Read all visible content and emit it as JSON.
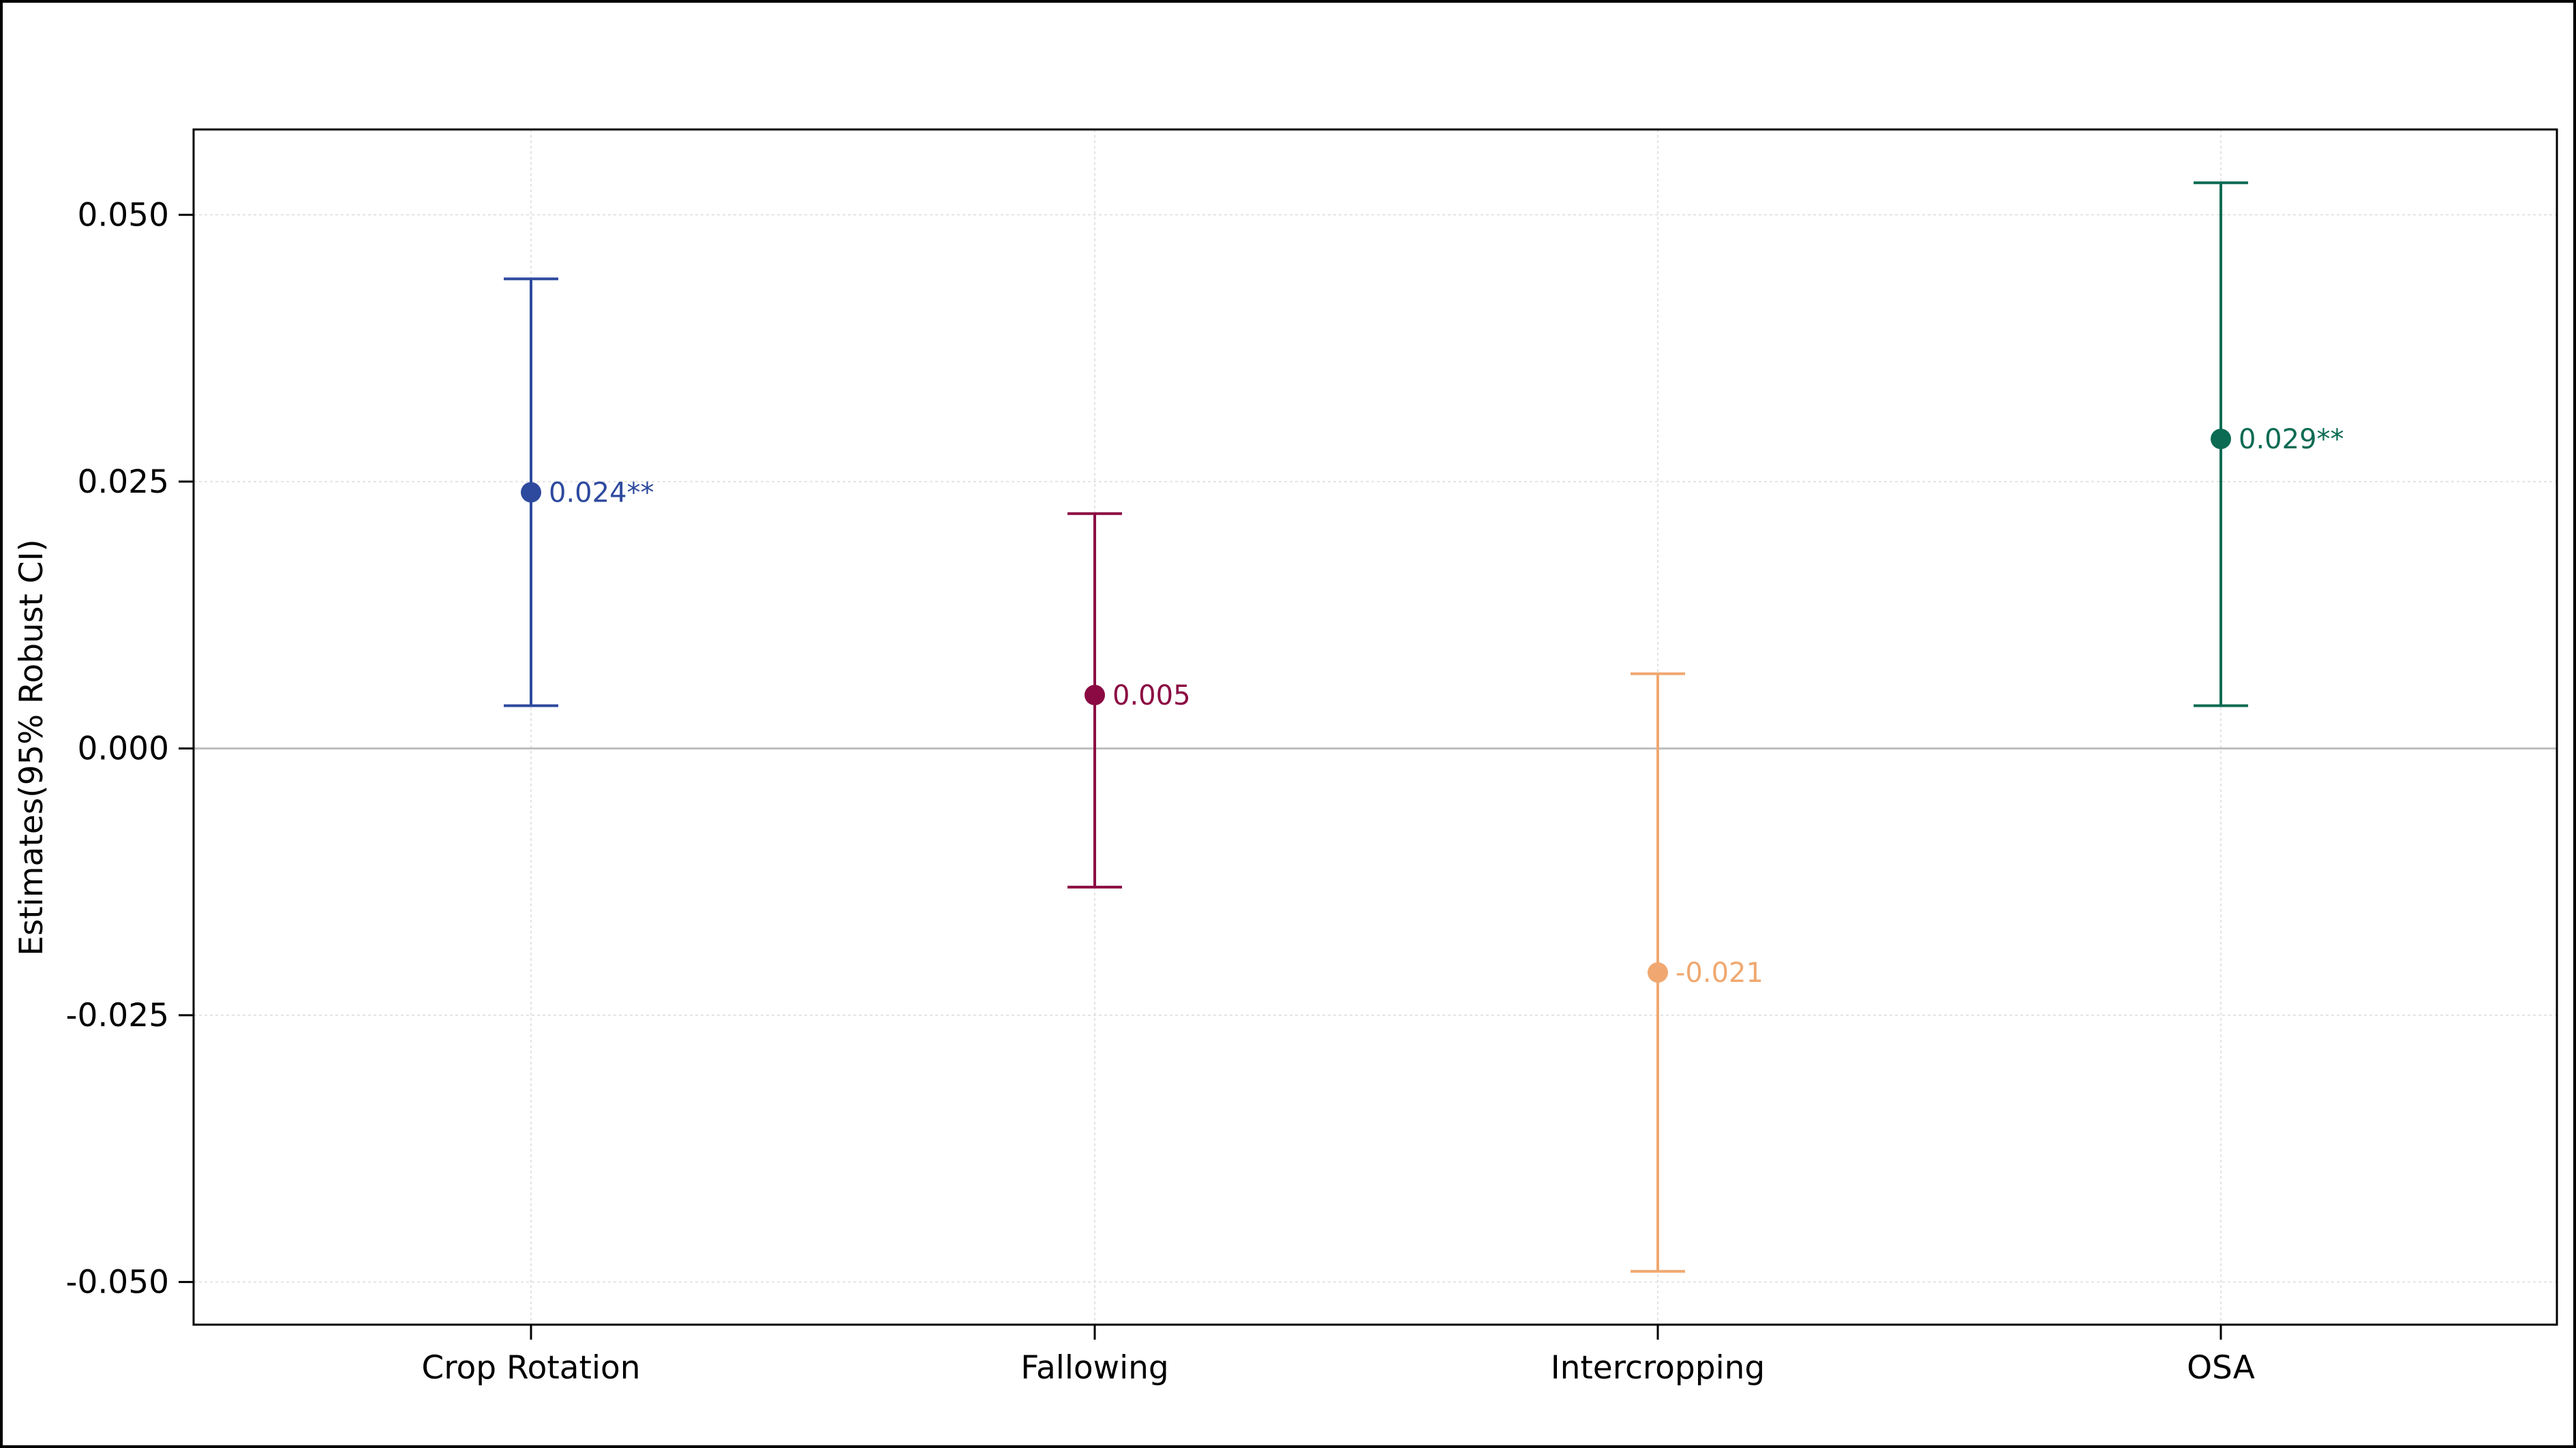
{
  "chart_data": {
    "type": "errorbar",
    "title": "",
    "xlabel": "",
    "ylabel": "Estimates(95% Robust CI)",
    "ylim": [
      -0.054,
      0.058
    ],
    "y_ticks": [
      0.05,
      0.025,
      0.0,
      -0.025,
      -0.05
    ],
    "y_tick_labels": [
      "0.050",
      "0.025",
      "0.000",
      "-0.025",
      "-0.050"
    ],
    "grid": true,
    "zero_line": true,
    "categories": [
      "Crop Rotation",
      "Fallowing",
      "Intercropping",
      "OSA"
    ],
    "points": [
      {
        "category": "Crop Rotation",
        "estimate": 0.024,
        "lower": 0.004,
        "upper": 0.044,
        "label": "0.024**",
        "color": "#2E4A9E"
      },
      {
        "category": "Fallowing",
        "estimate": 0.005,
        "lower": -0.013,
        "upper": 0.022,
        "label": "0.005",
        "color": "#8B0A43"
      },
      {
        "category": "Intercropping",
        "estimate": -0.021,
        "lower": -0.049,
        "upper": 0.007,
        "label": "-0.021",
        "color": "#F0A870"
      },
      {
        "category": "OSA",
        "estimate": 0.029,
        "lower": 0.004,
        "upper": 0.053,
        "label": "0.029**",
        "color": "#0B6B53"
      }
    ]
  }
}
